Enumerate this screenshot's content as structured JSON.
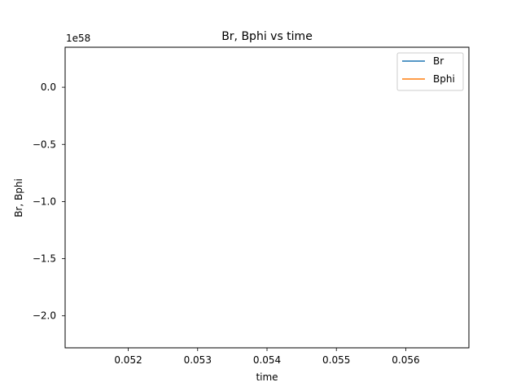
{
  "chart_data": {
    "type": "line",
    "title": "Br, Bphi vs time",
    "xlabel": "time",
    "ylabel": "Br, Bphi",
    "xlim": [
      0.05109,
      0.05691
    ],
    "ylim": [
      -2.28,
      0.35
    ],
    "y_offset_label": "1e58",
    "x_ticks": [
      {
        "value": 0.052,
        "label": "0.052"
      },
      {
        "value": 0.053,
        "label": "0.053"
      },
      {
        "value": 0.054,
        "label": "0.054"
      },
      {
        "value": 0.055,
        "label": "0.055"
      },
      {
        "value": 0.056,
        "label": "0.056"
      }
    ],
    "y_ticks": [
      {
        "value": 0.0,
        "label": "0.0"
      },
      {
        "value": -0.5,
        "label": "−0.5"
      },
      {
        "value": -1.0,
        "label": "−1.0"
      },
      {
        "value": -1.5,
        "label": "−1.5"
      },
      {
        "value": -2.0,
        "label": "−2.0"
      }
    ],
    "legend_position": "top-right",
    "grid": false,
    "series": [
      {
        "name": "Br",
        "color": "#1f77b4",
        "x": [],
        "y": []
      },
      {
        "name": "Bphi",
        "color": "#ff7f0e",
        "x": [],
        "y": []
      }
    ]
  }
}
